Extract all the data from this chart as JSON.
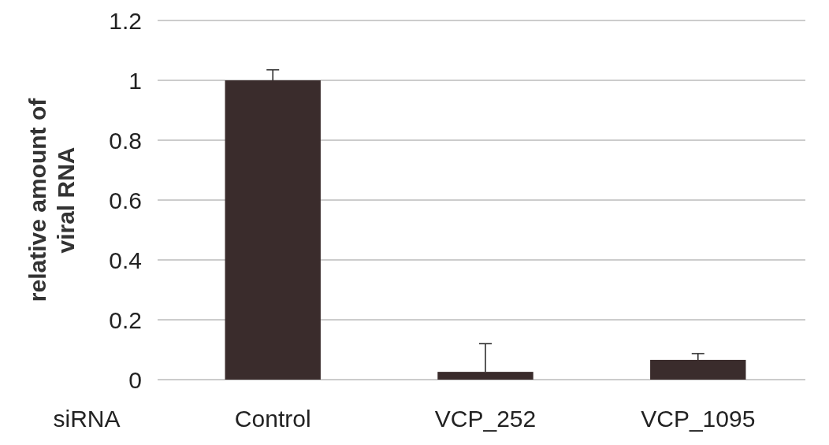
{
  "chart_data": {
    "type": "bar",
    "ylabel": "relative amount of viral RNA",
    "categories": [
      "Control",
      "VCP_252",
      "VCP_1095"
    ],
    "values": [
      1.0,
      0.026,
      0.066
    ],
    "errors": [
      [
        1.0,
        1.035
      ],
      [
        0.026,
        0.12
      ],
      [
        0.066,
        0.087
      ]
    ],
    "color": "#3a2c2c",
    "ylim": [
      0,
      1.2
    ],
    "yticks": [
      0,
      {
        "value": 0.2,
        "label": "0.2"
      },
      {
        "value": 0.4,
        "label": "0.4"
      },
      {
        "value": 0.6,
        "label": "0.6"
      },
      {
        "value": 0.8,
        "label": "0.8"
      },
      1,
      {
        "value": 1.2,
        "label": "1.2"
      }
    ],
    "grid": "y",
    "annotations": [
      "siRNA"
    ]
  }
}
